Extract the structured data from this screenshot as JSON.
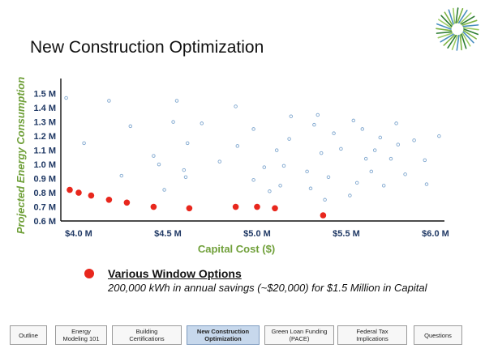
{
  "slide": {
    "title": "New Construction Optimization"
  },
  "logo": {
    "icon": "sunburst-logo",
    "colors": [
      "#2e7d32",
      "#7cb342",
      "#4a8fbf",
      "#9ccc65"
    ]
  },
  "legend": {
    "title": "Various Window Options",
    "subtitle": "200,000 kWh in annual savings (~$20,000) for $1.5 Million in Capital",
    "marker_color": "#e8271d"
  },
  "chart_data": {
    "type": "scatter",
    "title": "",
    "xlabel": "Capital Cost ($)",
    "ylabel": "Projected Energy Consumption",
    "xlim": [
      3.9,
      6.05
    ],
    "ylim": [
      0.6,
      1.55
    ],
    "x_ticks": [
      {
        "value": 4.0,
        "label": "$4.0 M"
      },
      {
        "value": 4.5,
        "label": "$4.5 M"
      },
      {
        "value": 5.0,
        "label": "$5.0 M"
      },
      {
        "value": 5.5,
        "label": "$5.5 M"
      },
      {
        "value": 6.0,
        "label": "$6.0 M"
      }
    ],
    "y_ticks": [
      {
        "value": 0.6,
        "label": "0.6 M"
      },
      {
        "value": 0.7,
        "label": "0.7 M"
      },
      {
        "value": 0.8,
        "label": "0.8 M"
      },
      {
        "value": 0.9,
        "label": "0.9 M"
      },
      {
        "value": 1.0,
        "label": "1.0 M"
      },
      {
        "value": 1.1,
        "label": "1.1 M"
      },
      {
        "value": 1.2,
        "label": "1.2 M"
      },
      {
        "value": 1.3,
        "label": "1.3 M"
      },
      {
        "value": 1.4,
        "label": "1.4 M"
      },
      {
        "value": 1.5,
        "label": "1.5 M"
      }
    ],
    "grid": false,
    "series": [
      {
        "color": "#7fa7cf",
        "marker": "hollow-circle",
        "points": [
          [
            3.93,
            1.47
          ],
          [
            4.03,
            1.15
          ],
          [
            4.17,
            1.45
          ],
          [
            4.24,
            0.92
          ],
          [
            4.29,
            1.27
          ],
          [
            4.42,
            1.06
          ],
          [
            4.45,
            1.0
          ],
          [
            4.48,
            0.82
          ],
          [
            4.53,
            1.3
          ],
          [
            4.55,
            1.45
          ],
          [
            4.59,
            0.96
          ],
          [
            4.6,
            0.91
          ],
          [
            4.61,
            1.15
          ],
          [
            4.69,
            1.29
          ],
          [
            4.79,
            1.02
          ],
          [
            4.88,
            1.41
          ],
          [
            4.89,
            1.13
          ],
          [
            4.98,
            0.89
          ],
          [
            4.98,
            1.25
          ],
          [
            5.04,
            0.98
          ],
          [
            5.07,
            0.81
          ],
          [
            5.11,
            1.1
          ],
          [
            5.13,
            0.85
          ],
          [
            5.15,
            0.99
          ],
          [
            5.18,
            1.18
          ],
          [
            5.19,
            1.34
          ],
          [
            5.28,
            0.95
          ],
          [
            5.3,
            0.83
          ],
          [
            5.32,
            1.28
          ],
          [
            5.34,
            1.35
          ],
          [
            5.36,
            1.08
          ],
          [
            5.38,
            0.75
          ],
          [
            5.4,
            0.91
          ],
          [
            5.43,
            1.22
          ],
          [
            5.47,
            1.11
          ],
          [
            5.52,
            0.78
          ],
          [
            5.54,
            1.31
          ],
          [
            5.56,
            0.87
          ],
          [
            5.59,
            1.25
          ],
          [
            5.61,
            1.04
          ],
          [
            5.64,
            0.95
          ],
          [
            5.66,
            1.1
          ],
          [
            5.69,
            1.19
          ],
          [
            5.71,
            0.85
          ],
          [
            5.75,
            1.04
          ],
          [
            5.78,
            1.29
          ],
          [
            5.79,
            1.14
          ],
          [
            5.83,
            0.93
          ],
          [
            5.88,
            1.17
          ],
          [
            5.94,
            1.03
          ],
          [
            5.95,
            0.86
          ],
          [
            6.02,
            1.2
          ]
        ]
      },
      {
        "name": "Various Window Options",
        "color": "#e8271d",
        "marker": "filled-circle",
        "points": [
          [
            3.95,
            0.82
          ],
          [
            4.0,
            0.8
          ],
          [
            4.07,
            0.78
          ],
          [
            4.17,
            0.75
          ],
          [
            4.27,
            0.73
          ],
          [
            4.42,
            0.7
          ],
          [
            4.62,
            0.69
          ],
          [
            4.88,
            0.7
          ],
          [
            5.0,
            0.7
          ],
          [
            5.1,
            0.69
          ],
          [
            5.37,
            0.64
          ]
        ]
      }
    ]
  },
  "nav": {
    "items": [
      {
        "label": "Outline",
        "active": false
      },
      {
        "label": "Energy\nModeling 101",
        "active": false
      },
      {
        "label": "Building\nCertifications",
        "active": false
      },
      {
        "label": "New Construction\nOptimization",
        "active": true
      },
      {
        "label": "Green Loan Funding\n(PACE)",
        "active": false
      },
      {
        "label": "Federal Tax\nImplications",
        "active": false
      },
      {
        "label": "Questions",
        "active": false
      }
    ]
  }
}
